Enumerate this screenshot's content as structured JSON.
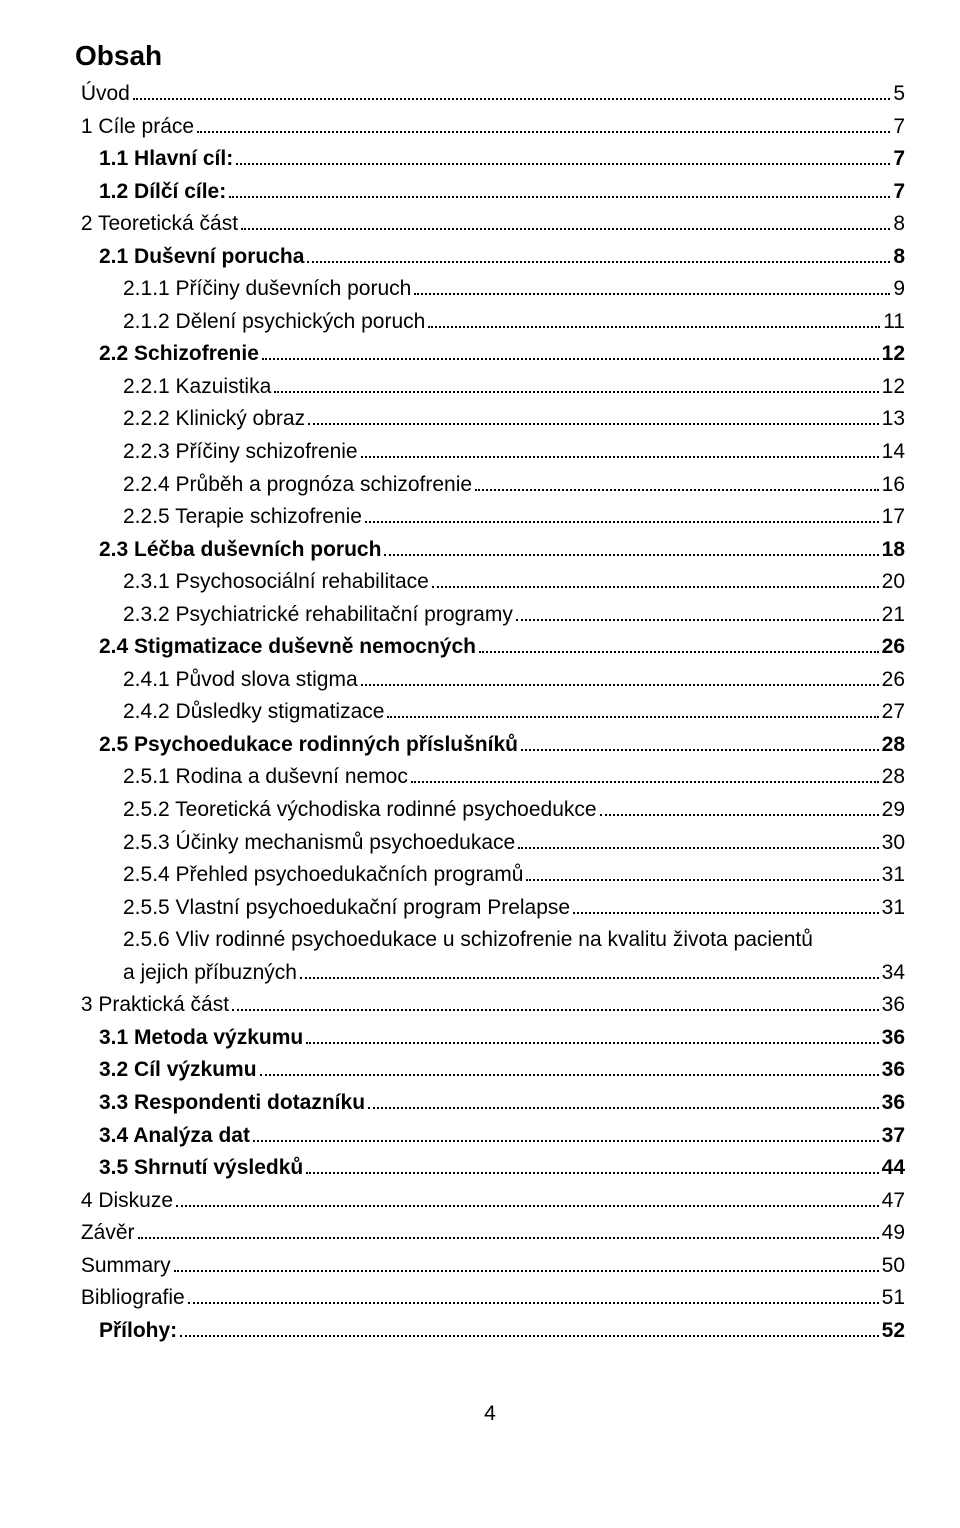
{
  "title": "Obsah",
  "pagenum": "4",
  "toc": [
    {
      "label": " Úvod",
      "page": "5",
      "indent": 0,
      "bold": false
    },
    {
      "label": " 1 Cíle práce",
      "page": "7",
      "indent": 0,
      "bold": false
    },
    {
      "label": "1.1 Hlavní cíl:",
      "page": "7",
      "indent": 1,
      "bold": true
    },
    {
      "label": "1.2 Dílčí cíle:",
      "page": "7",
      "indent": 1,
      "bold": true
    },
    {
      "label": " 2 Teoretická část",
      "page": "8",
      "indent": 0,
      "bold": false
    },
    {
      "label": "2.1 Duševní porucha",
      "page": "8",
      "indent": 1,
      "bold": true
    },
    {
      "label": "2.1.1 Příčiny duševních poruch",
      "page": "9",
      "indent": 2,
      "bold": false
    },
    {
      "label": "2.1.2 Dělení psychických poruch",
      "page": "11",
      "indent": 2,
      "bold": false
    },
    {
      "label": "2.2 Schizofrenie",
      "page": "12",
      "indent": 1,
      "bold": true
    },
    {
      "label": "2.2.1 Kazuistika",
      "page": "12",
      "indent": 2,
      "bold": false
    },
    {
      "label": "2.2.2 Klinický obraz",
      "page": "13",
      "indent": 2,
      "bold": false
    },
    {
      "label": "2.2.3 Příčiny schizofrenie",
      "page": "14",
      "indent": 2,
      "bold": false
    },
    {
      "label": "2.2.4 Průběh a prognóza schizofrenie",
      "page": "16",
      "indent": 2,
      "bold": false
    },
    {
      "label": "2.2.5 Terapie schizofrenie",
      "page": "17",
      "indent": 2,
      "bold": false
    },
    {
      "label": "2.3 Léčba duševních poruch",
      "page": "18",
      "indent": 1,
      "bold": true
    },
    {
      "label": "2.3.1 Psychosociální rehabilitace",
      "page": "20",
      "indent": 2,
      "bold": false
    },
    {
      "label": "2.3.2 Psychiatrické rehabilitační programy",
      "page": "21",
      "indent": 2,
      "bold": false
    },
    {
      "label": "2.4 Stigmatizace duševně nemocných",
      "page": "26",
      "indent": 1,
      "bold": true
    },
    {
      "label": "2.4.1 Původ slova stigma",
      "page": "26",
      "indent": 2,
      "bold": false
    },
    {
      "label": "2.4.2 Důsledky stigmatizace",
      "page": "27",
      "indent": 2,
      "bold": false
    },
    {
      "label": "2.5 Psychoedukace rodinných příslušníků",
      "page": "28",
      "indent": 1,
      "bold": true
    },
    {
      "label": "2.5.1 Rodina a duševní nemoc",
      "page": "28",
      "indent": 2,
      "bold": false
    },
    {
      "label": "2.5.2 Teoretická východiska rodinné psychoedukce",
      "page": "29",
      "indent": 2,
      "bold": false
    },
    {
      "label": "2.5.3 Účinky mechanismů psychoedukace",
      "page": "30",
      "indent": 2,
      "bold": false
    },
    {
      "label": "2.5.4 Přehled psychoedukačních programů",
      "page": "31",
      "indent": 2,
      "bold": false
    },
    {
      "label": "2.5.5 Vlastní psychoedukační program Prelapse",
      "page": "31",
      "indent": 2,
      "bold": false
    },
    {
      "label": "2.5.6 Vliv rodinné psychoedukace u schizofrenie na kvalitu života pacientů\na jejich příbuzných",
      "page": "34",
      "indent": 2,
      "bold": false,
      "multiline": true
    },
    {
      "label": " 3 Praktická část",
      "page": "36",
      "indent": 0,
      "bold": false
    },
    {
      "label": "3.1 Metoda výzkumu",
      "page": "36",
      "indent": 1,
      "bold": true
    },
    {
      "label": "3.2 Cíl výzkumu",
      "page": "36",
      "indent": 1,
      "bold": true
    },
    {
      "label": "3.3 Respondenti dotazníku",
      "page": "36",
      "indent": 1,
      "bold": true
    },
    {
      "label": "3.4 Analýza dat",
      "page": "37",
      "indent": 1,
      "bold": true
    },
    {
      "label": "3.5 Shrnutí výsledků",
      "page": "44",
      "indent": 1,
      "bold": true
    },
    {
      "label": " 4 Diskuze",
      "page": "47",
      "indent": 0,
      "bold": false
    },
    {
      "label": " Závěr",
      "page": "49",
      "indent": 0,
      "bold": false
    },
    {
      "label": " Summary",
      "page": "50",
      "indent": 0,
      "bold": false
    },
    {
      "label": " Bibliografie",
      "page": "51",
      "indent": 0,
      "bold": false
    },
    {
      "label": "Přílohy:",
      "page": "52",
      "indent": 1,
      "bold": true
    }
  ]
}
